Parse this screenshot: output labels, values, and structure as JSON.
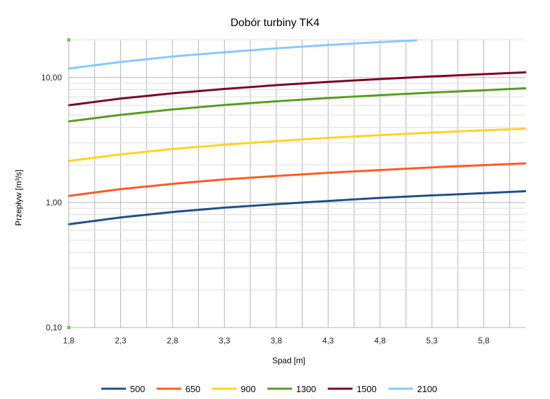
{
  "chart_data": {
    "type": "line",
    "title": "Dobór turbiny TK4",
    "xlabel": "Spad [m]",
    "ylabel": "Przepływ [m³/s]",
    "x_scale": "linear",
    "y_scale": "log",
    "xlim": [
      1.8,
      6.2
    ],
    "ylim": [
      0.1,
      20
    ],
    "x_ticks": [
      "1,8",
      "2,3",
      "2,8",
      "3,3",
      "3,8",
      "4,3",
      "4,8",
      "5,3",
      "5,8"
    ],
    "y_ticks": [
      "0,10",
      "1,00",
      "10,00"
    ],
    "grid": "on",
    "legend_position": "bottom",
    "series": [
      {
        "name": "500",
        "color": "#1f4e8c",
        "x": [
          1.8,
          2.3,
          2.8,
          3.3,
          3.8,
          4.3,
          4.8,
          5.3,
          5.8,
          6.2
        ],
        "y": [
          0.67,
          0.76,
          0.84,
          0.91,
          0.97,
          1.03,
          1.09,
          1.14,
          1.19,
          1.23
        ]
      },
      {
        "name": "650",
        "color": "#ff5a1f",
        "x": [
          1.8,
          2.3,
          2.8,
          3.3,
          3.8,
          4.3,
          4.8,
          5.3,
          5.8,
          6.2
        ],
        "y": [
          1.13,
          1.28,
          1.41,
          1.53,
          1.63,
          1.73,
          1.82,
          1.91,
          1.99,
          2.06
        ]
      },
      {
        "name": "900",
        "color": "#ffd320",
        "x": [
          1.8,
          2.3,
          2.8,
          3.3,
          3.8,
          4.3,
          4.8,
          5.3,
          5.8,
          6.2
        ],
        "y": [
          2.15,
          2.43,
          2.68,
          2.9,
          3.1,
          3.29,
          3.46,
          3.63,
          3.78,
          3.9
        ]
      },
      {
        "name": "1300",
        "color": "#579d1c",
        "x": [
          1.8,
          2.3,
          2.8,
          3.3,
          3.8,
          4.3,
          4.8,
          5.3,
          5.8,
          6.2
        ],
        "y": [
          4.45,
          5.03,
          5.55,
          6.02,
          6.45,
          6.85,
          7.22,
          7.57,
          7.9,
          8.2
        ]
      },
      {
        "name": "1500",
        "color": "#7e0021",
        "x": [
          1.8,
          2.3,
          2.8,
          3.3,
          3.8,
          4.3,
          4.8,
          5.3,
          5.8,
          6.2
        ],
        "y": [
          6.0,
          6.78,
          7.47,
          8.1,
          8.68,
          9.22,
          9.72,
          10.19,
          10.63,
          11.0
        ]
      },
      {
        "name": "2100",
        "color": "#83caff",
        "x": [
          1.8,
          2.3,
          2.8,
          3.3,
          3.8,
          4.3,
          4.8,
          5.15
        ],
        "y": [
          11.8,
          13.3,
          14.7,
          15.9,
          17.1,
          18.2,
          19.2,
          19.8
        ]
      }
    ]
  }
}
